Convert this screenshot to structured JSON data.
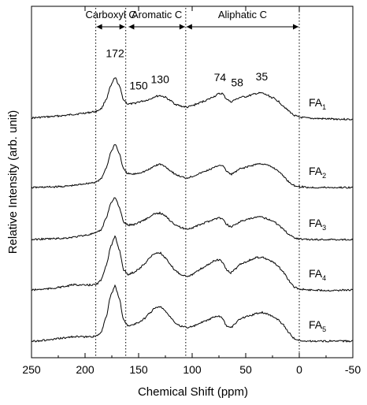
{
  "chart_data": {
    "type": "line",
    "xlabel": "Chemical Shift (ppm)",
    "ylabel": "Relative Intensity (arb. unit)",
    "xlim": [
      250,
      -50
    ],
    "x_reversed": true,
    "x_ticks": [
      250,
      200,
      150,
      100,
      50,
      0,
      -50
    ],
    "x_tick_labels": [
      "250",
      "200",
      "150",
      "100",
      "50",
      "0",
      "-50"
    ],
    "y_ticks_shown": false,
    "grid": false,
    "legend": "labels at right end of each trace",
    "regions": [
      {
        "label": "Carboxyl C",
        "from": 190,
        "to": 162
      },
      {
        "label": "Aromatic C",
        "from": 160,
        "to": 106
      },
      {
        "label": "Aliphatic C",
        "from": 106,
        "to": 0
      }
    ],
    "dotted_lines_ppm": [
      190,
      162,
      106,
      0
    ],
    "peak_labels": [
      {
        "text": "172",
        "ppm": 172
      },
      {
        "text": "150",
        "ppm": 150
      },
      {
        "text": "130",
        "ppm": 130
      },
      {
        "text": "74",
        "ppm": 74
      },
      {
        "text": "58",
        "ppm": 58
      },
      {
        "text": "35",
        "ppm": 35
      }
    ],
    "x": [
      250,
      235,
      220,
      210,
      200,
      190,
      185,
      180,
      176,
      172,
      168,
      164,
      160,
      155,
      150,
      145,
      140,
      135,
      130,
      125,
      120,
      115,
      110,
      105,
      100,
      95,
      90,
      85,
      80,
      75,
      72,
      68,
      64,
      60,
      55,
      50,
      45,
      40,
      35,
      30,
      25,
      20,
      15,
      10,
      5,
      0,
      -10,
      -30,
      -50
    ],
    "series": [
      {
        "name": "FA",
        "subscript": "1",
        "values": [
          0.05,
          0.1,
          0.16,
          0.22,
          0.28,
          0.35,
          0.48,
          0.95,
          1.55,
          1.95,
          1.55,
          0.9,
          0.7,
          0.72,
          0.8,
          0.85,
          0.92,
          1.05,
          1.1,
          1.02,
          0.85,
          0.68,
          0.6,
          0.55,
          0.62,
          0.72,
          0.82,
          0.92,
          1.05,
          1.18,
          1.2,
          0.95,
          0.8,
          0.9,
          1.02,
          1.05,
          1.12,
          1.2,
          1.22,
          1.12,
          1.0,
          0.85,
          0.62,
          0.38,
          0.18,
          0.08,
          0.03,
          0.0,
          -0.02
        ]
      },
      {
        "name": "FA",
        "subscript": "2",
        "values": [
          0.0,
          0.02,
          0.05,
          0.1,
          0.18,
          0.25,
          0.4,
          0.95,
          1.65,
          2.05,
          1.6,
          0.85,
          0.65,
          0.62,
          0.68,
          0.75,
          0.85,
          1.02,
          1.1,
          0.98,
          0.78,
          0.6,
          0.5,
          0.45,
          0.52,
          0.62,
          0.72,
          0.82,
          0.92,
          1.05,
          1.05,
          0.78,
          0.62,
          0.72,
          0.88,
          0.95,
          1.02,
          1.1,
          1.12,
          1.05,
          0.95,
          0.8,
          0.55,
          0.28,
          0.1,
          0.04,
          0.0,
          0.0,
          0.0
        ]
      },
      {
        "name": "FA",
        "subscript": "3",
        "values": [
          0.0,
          0.03,
          0.06,
          0.12,
          0.2,
          0.3,
          0.45,
          1.05,
          1.7,
          2.0,
          1.5,
          0.82,
          0.68,
          0.7,
          0.8,
          0.92,
          1.05,
          1.2,
          1.25,
          1.1,
          0.88,
          0.68,
          0.55,
          0.5,
          0.55,
          0.65,
          0.75,
          0.85,
          0.95,
          1.02,
          0.98,
          0.72,
          0.6,
          0.7,
          0.85,
          0.92,
          0.98,
          1.05,
          1.05,
          0.98,
          0.88,
          0.72,
          0.5,
          0.25,
          0.1,
          0.03,
          0.0,
          0.0,
          0.0
        ]
      },
      {
        "name": "FA",
        "subscript": "4",
        "values": [
          0.0,
          0.05,
          0.15,
          0.25,
          0.22,
          0.25,
          0.45,
          1.2,
          2.05,
          2.5,
          1.9,
          0.95,
          0.72,
          0.82,
          0.98,
          1.2,
          1.5,
          1.72,
          1.75,
          1.5,
          1.15,
          0.88,
          0.72,
          0.65,
          0.72,
          0.88,
          1.05,
          1.2,
          1.35,
          1.42,
          1.32,
          0.95,
          0.8,
          0.98,
          1.22,
          1.32,
          1.42,
          1.52,
          1.55,
          1.45,
          1.32,
          1.12,
          0.85,
          0.45,
          0.15,
          0.04,
          0.0,
          -0.02,
          0.0
        ]
      },
      {
        "name": "FA",
        "subscript": "5",
        "values": [
          0.0,
          0.05,
          0.15,
          0.22,
          0.2,
          0.22,
          0.42,
          1.2,
          2.15,
          2.6,
          2.0,
          1.0,
          0.72,
          0.78,
          0.88,
          1.05,
          1.3,
          1.55,
          1.62,
          1.42,
          1.12,
          0.85,
          0.7,
          0.65,
          0.68,
          0.78,
          0.9,
          1.0,
          1.12,
          1.18,
          1.08,
          0.72,
          0.62,
          0.82,
          1.05,
          1.15,
          1.22,
          1.3,
          1.35,
          1.28,
          1.18,
          1.02,
          0.78,
          0.42,
          0.14,
          0.03,
          0.0,
          0.0,
          0.0
        ]
      }
    ]
  }
}
